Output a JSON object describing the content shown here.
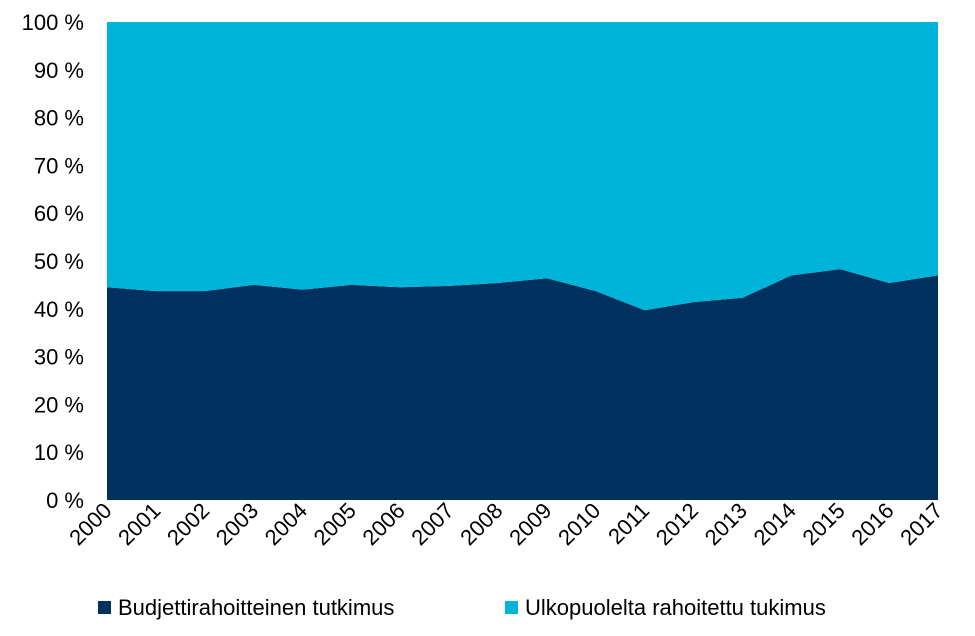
{
  "chart_data": {
    "type": "stacked_area",
    "categories": [
      "2000",
      "2001",
      "2002",
      "2003",
      "2004",
      "2005",
      "2006",
      "2007",
      "2008",
      "2009",
      "2010",
      "2011",
      "2012",
      "2013",
      "2014",
      "2015",
      "2016",
      "2017"
    ],
    "series": [
      {
        "name": "Budjettirahoitteinen tutkimus",
        "color": "#00315f",
        "values": [
          44.5,
          43.7,
          43.7,
          45,
          44,
          45,
          44.5,
          44.8,
          45.4,
          46.4,
          43.7,
          39.7,
          41.4,
          42.3,
          47,
          48.3,
          45.4,
          47
        ]
      },
      {
        "name": "Ulkopuolelta rahoitettu tukimus",
        "color": "#00b4d9",
        "values": [
          55.5,
          56.3,
          56.3,
          55,
          56,
          55,
          55.5,
          55.2,
          54.6,
          53.6,
          56.3,
          60.3,
          58.6,
          57.7,
          53,
          51.7,
          54.6,
          53
        ]
      }
    ],
    "ylim": [
      0,
      100
    ],
    "yticks": [
      {
        "value": 0,
        "label": "0 %"
      },
      {
        "value": 10,
        "label": "10 %"
      },
      {
        "value": 20,
        "label": "20 %"
      },
      {
        "value": 30,
        "label": "30 %"
      },
      {
        "value": 40,
        "label": "40 %"
      },
      {
        "value": 50,
        "label": "50 %"
      },
      {
        "value": 60,
        "label": "60 %"
      },
      {
        "value": 70,
        "label": "70 %"
      },
      {
        "value": 80,
        "label": "80 %"
      },
      {
        "value": 90,
        "label": "90 %"
      },
      {
        "value": 100,
        "label": "100 %"
      }
    ],
    "legend": "bottom"
  }
}
